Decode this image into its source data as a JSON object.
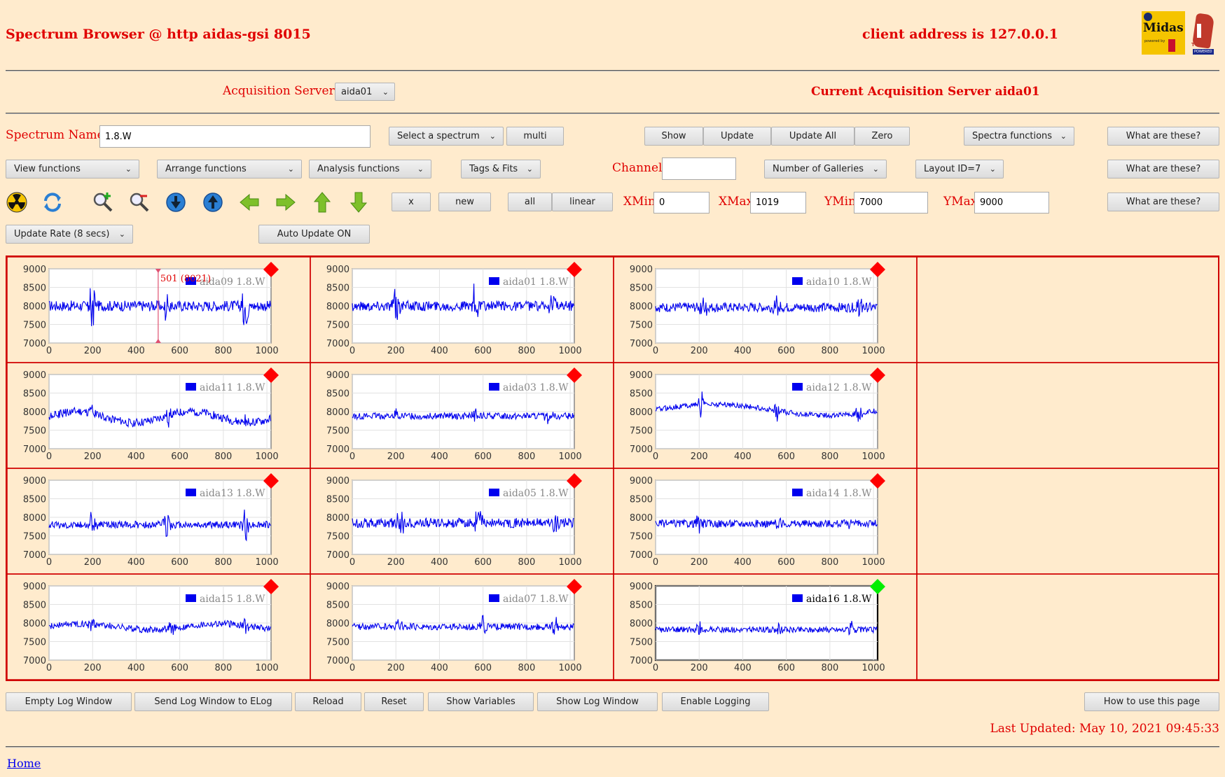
{
  "header": {
    "title": "Spectrum Browser @ http aidas-gsi 8015",
    "client": "client address is 127.0.0.1",
    "logo_midas": "Midas",
    "logo_midas_sub": "powered by",
    "logo_tcl": "TCL",
    "logo_tcl_sub": "POWERED"
  },
  "acq": {
    "label": "Acquisition Servers",
    "server_select": "aida01",
    "current": "Current Acquisition Server aida01"
  },
  "row1": {
    "spectrum_label": "Spectrum Name:",
    "spectrum_value": "1.8.W",
    "select_spectrum": "Select a spectrum",
    "multi": "multi",
    "show": "Show",
    "update": "Update",
    "update_all": "Update All",
    "zero": "Zero",
    "spectra_functions": "Spectra functions",
    "what": "What are these?"
  },
  "row2": {
    "view": "View functions",
    "arrange": "Arrange functions",
    "analysis": "Analysis functions",
    "tags": "Tags & Fits",
    "channel_label": "Channel:",
    "channel_value": "",
    "galleries": "Number of Galleries",
    "layout": "Layout ID=7",
    "what": "What are these?"
  },
  "row3": {
    "x": "x",
    "new": "new",
    "all": "all",
    "linear": "linear",
    "xmin_label": "XMin",
    "xmin": "0",
    "xmax_label": "XMax",
    "xmax": "1019",
    "ymin_label": "YMin",
    "ymin": "7000",
    "ymax_label": "YMax",
    "ymax": "9000",
    "what": "What are these?"
  },
  "row4": {
    "update_rate": "Update Rate (8 secs)",
    "auto_update": "Auto Update ON"
  },
  "icons": [
    "radiation-icon",
    "refresh-icon",
    "zoom-in-icon",
    "zoom-out-icon",
    "expand-down-icon",
    "expand-up-icon",
    "arrow-left-icon",
    "arrow-right-icon",
    "arrow-up-icon",
    "arrow-down-icon"
  ],
  "chart_data": {
    "type": "line",
    "x_ticks": [
      "0",
      "200",
      "400",
      "600",
      "800",
      "1000"
    ],
    "y_ticks": [
      "9000",
      "8500",
      "8000",
      "7500",
      "7000"
    ],
    "xlim": [
      0,
      1019
    ],
    "ylim": [
      7000,
      9000
    ],
    "series_color": "#0000ee",
    "cursor": {
      "panel": "aida09",
      "x": 501,
      "label": "501 (8021)"
    },
    "panels": [
      {
        "name": "aida09 1.8.W",
        "id": "aida09",
        "row": 0,
        "col": 0,
        "base": 8000,
        "noise": 180,
        "spikes": [
          [
            200,
            700
          ],
          [
            540,
            450
          ],
          [
            900,
            600
          ]
        ],
        "marker": "#ff0000"
      },
      {
        "name": "aida01 1.8.W",
        "id": "aida01",
        "row": 0,
        "col": 1,
        "base": 8000,
        "noise": 170,
        "spikes": [
          [
            200,
            500
          ],
          [
            560,
            600
          ],
          [
            920,
            400
          ]
        ],
        "marker": "#ff0000"
      },
      {
        "name": "aida10 1.8.W",
        "id": "aida10",
        "row": 0,
        "col": 2,
        "base": 7960,
        "noise": 160,
        "spikes": [
          [
            220,
            400
          ],
          [
            560,
            350
          ],
          [
            930,
            350
          ]
        ],
        "marker": "#ff0000"
      },
      {
        "name": "aida11 1.8.W",
        "id": "aida11",
        "row": 1,
        "col": 0,
        "base": 7850,
        "noise": 140,
        "wave": [
          150,
          0.012
        ],
        "spikes": [
          [
            200,
            250
          ],
          [
            550,
            250
          ],
          [
            900,
            200
          ]
        ],
        "marker": "#ff0000"
      },
      {
        "name": "aida03 1.8.W",
        "id": "aida03",
        "row": 1,
        "col": 1,
        "base": 7880,
        "noise": 110,
        "spikes": [
          [
            200,
            200
          ],
          [
            560,
            200
          ],
          [
            900,
            200
          ]
        ],
        "marker": "#ff0000"
      },
      {
        "name": "aida12 1.8.W",
        "id": "aida12",
        "row": 1,
        "col": 2,
        "base": 8050,
        "noise": 90,
        "wave": [
          150,
          0.006
        ],
        "spikes": [
          [
            210,
            350
          ],
          [
            560,
            300
          ],
          [
            930,
            300
          ]
        ],
        "marker": "#ff0000"
      },
      {
        "name": "aida13 1.8.W",
        "id": "aida13",
        "row": 2,
        "col": 0,
        "base": 7800,
        "noise": 120,
        "spikes": [
          [
            200,
            500
          ],
          [
            540,
            450
          ],
          [
            900,
            500
          ]
        ],
        "marker": "#ff0000"
      },
      {
        "name": "aida05 1.8.W",
        "id": "aida05",
        "row": 2,
        "col": 1,
        "base": 7850,
        "noise": 160,
        "spikes": [
          [
            220,
            450
          ],
          [
            580,
            500
          ],
          [
            930,
            450
          ]
        ],
        "marker": "#ff0000"
      },
      {
        "name": "aida14 1.8.W",
        "id": "aida14",
        "row": 2,
        "col": 2,
        "base": 7830,
        "noise": 130,
        "spikes": [
          [
            200,
            250
          ],
          [
            560,
            200
          ],
          [
            900,
            200
          ]
        ],
        "marker": "#ff0000"
      },
      {
        "name": "aida15 1.8.W",
        "id": "aida15",
        "row": 3,
        "col": 0,
        "base": 7900,
        "noise": 110,
        "wave": [
          80,
          0.01
        ],
        "spikes": [
          [
            200,
            250
          ],
          [
            560,
            250
          ],
          [
            900,
            250
          ]
        ],
        "marker": "#ff0000"
      },
      {
        "name": "aida07 1.8.W",
        "id": "aida07",
        "row": 3,
        "col": 1,
        "base": 7900,
        "noise": 110,
        "spikes": [
          [
            210,
            300
          ],
          [
            600,
            400
          ],
          [
            930,
            300
          ]
        ],
        "marker": "#ff0000"
      },
      {
        "name": "aida16 1.8.W",
        "id": "aida16",
        "row": 3,
        "col": 2,
        "base": 7820,
        "noise": 100,
        "spikes": [
          [
            200,
            250
          ],
          [
            560,
            200
          ],
          [
            900,
            200
          ]
        ],
        "marker": "#00ee00",
        "selected": true
      }
    ]
  },
  "bottom": {
    "empty_log": "Empty Log Window",
    "send_log": "Send Log Window to ELog",
    "reload": "Reload",
    "reset": "Reset",
    "show_vars": "Show Variables",
    "show_log": "Show Log Window",
    "enable_logging": "Enable Logging",
    "how_to": "How to use this page",
    "last_updated": "Last Updated: May 10, 2021 09:45:33",
    "home": "Home"
  }
}
